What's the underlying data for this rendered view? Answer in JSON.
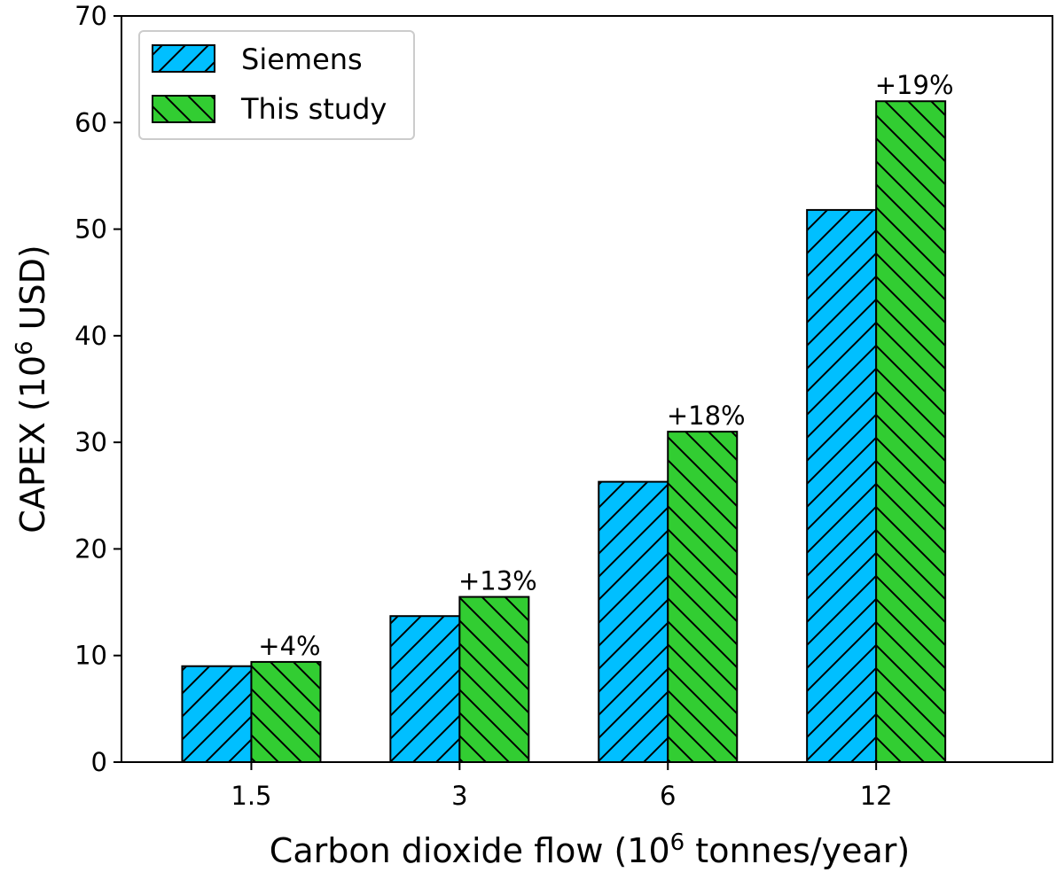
{
  "chart_data": {
    "type": "bar",
    "title": "",
    "xlabel": "Carbon dioxide flow (10",
    "xlabel_sup": "6",
    "xlabel_tail": " tonnes/year)",
    "ylabel": "CAPEX (10",
    "ylabel_sup": "6",
    "ylabel_tail": " USD)",
    "categories": [
      "1.5",
      "3",
      "6",
      "12"
    ],
    "ylim": [
      0,
      70
    ],
    "yticks": [
      0,
      10,
      20,
      30,
      40,
      50,
      60,
      70
    ],
    "ytick_labels": [
      "0",
      "10",
      "20",
      "30",
      "40",
      "50",
      "60",
      "70"
    ],
    "series": [
      {
        "name": "Siemens",
        "values": [
          9.0,
          13.7,
          26.3,
          51.8
        ],
        "color": "#00bfff",
        "hatch": "forward"
      },
      {
        "name": "This study",
        "values": [
          9.4,
          15.5,
          31.0,
          62.0
        ],
        "color": "#32cd32",
        "hatch": "backward"
      }
    ],
    "annotations": [
      "+4%",
      "+13%",
      "+18%",
      "+19%"
    ],
    "legend_position": "top-left",
    "grid": false
  }
}
